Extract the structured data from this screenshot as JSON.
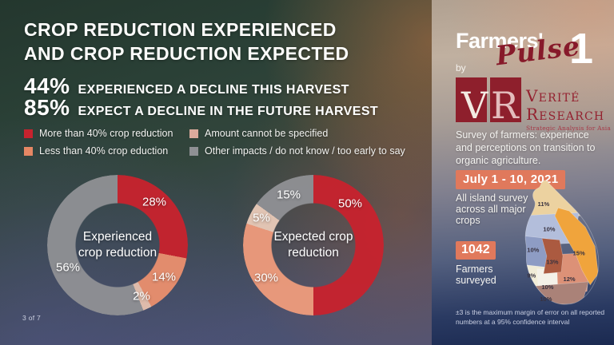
{
  "title": {
    "line1": "CROP REDUCTION EXPERIENCED",
    "line2": "AND CROP REDUCTION EXPECTED"
  },
  "stats": [
    {
      "value": "44%",
      "text": "EXPERIENCED A DECLINE THIS HARVEST"
    },
    {
      "value": "85%",
      "text": "EXPECT A DECLINE IN THE FUTURE HARVEST"
    }
  ],
  "legend": {
    "items": [
      {
        "label": "More than 40% crop reduction",
        "color": "#c7232e"
      },
      {
        "label": "Less than 40% crop eduction",
        "color": "#e68764"
      },
      {
        "label": "Amount cannot be specified",
        "color": "#dcab9d"
      },
      {
        "label": "Other impacts / do not know / too early to say",
        "color": "#8f9094"
      }
    ]
  },
  "chart_data": [
    {
      "type": "pie",
      "variant": "donut",
      "title": "Experienced crop reduction",
      "categories": [
        "More than 40% crop reduction",
        "Less than 40% crop eduction",
        "Amount cannot be specified",
        "Other impacts / do not know / too early to say"
      ],
      "values": [
        28,
        14,
        2,
        56
      ],
      "labels": [
        "28%",
        "14%",
        "2%",
        "56%"
      ],
      "colors": [
        "#c7232e",
        "#e98f6e",
        "#e5c0ae",
        "#8f9094"
      ],
      "legend_position": "top",
      "start_angle_deg": 0
    },
    {
      "type": "pie",
      "variant": "donut",
      "title": "Expected crop reduction",
      "categories": [
        "More than 40% crop reduction",
        "Less than 40% crop eduction",
        "Amount cannot be specified",
        "Other impacts / do not know / too early to say"
      ],
      "values": [
        50,
        30,
        5,
        15
      ],
      "labels": [
        "50%",
        "30%",
        "5%",
        "15%"
      ],
      "colors": [
        "#c7232e",
        "#ee9b7c",
        "#e8c9b8",
        "#8f9094"
      ],
      "legend_position": "top",
      "start_angle_deg": 0
    }
  ],
  "footer": {
    "page_indicator": "3 of 7"
  },
  "sidebar": {
    "brand": {
      "name_part1": "Farmers'",
      "name_part2": "Pulse",
      "issue": "1",
      "by": "by"
    },
    "publisher": {
      "initials_v": "V",
      "initials_r": "R",
      "line1": "Verité",
      "line2": "Research",
      "tagline": "Strategic Analysis for Asia"
    },
    "description": "Survey of farmers: experience and perceptions on transition to organic agriculture.",
    "date_badge": "July 1 - 10, 2021",
    "coverage": "All island survey across all major crops",
    "farmers_count": "1042",
    "farmers_label": "Farmers surveyed",
    "margin_note": "±3 is the maximum margin of error on all reported numbers at a 95% confidence interval",
    "map": {
      "country": "Sri Lanka",
      "regions": [
        {
          "name": "north",
          "value": "11%",
          "color": "#ecd2a0"
        },
        {
          "name": "north-central",
          "value": "10%",
          "color": "#b3bedb"
        },
        {
          "name": "west",
          "value": "10%",
          "color": "#8e9cc4"
        },
        {
          "name": "east",
          "value": "15%",
          "color": "#f0a43c"
        },
        {
          "name": "central",
          "value": "13%",
          "color": "#ab5a40"
        },
        {
          "name": "south-west",
          "value": "9%",
          "color": "#f1ecd7"
        },
        {
          "name": "south-central",
          "value": "10%",
          "color": "#f4f1e8"
        },
        {
          "name": "south-east",
          "value": "12%",
          "color": "#dc9177"
        },
        {
          "name": "south",
          "value": "10%",
          "color": "#aa8278"
        }
      ]
    }
  }
}
